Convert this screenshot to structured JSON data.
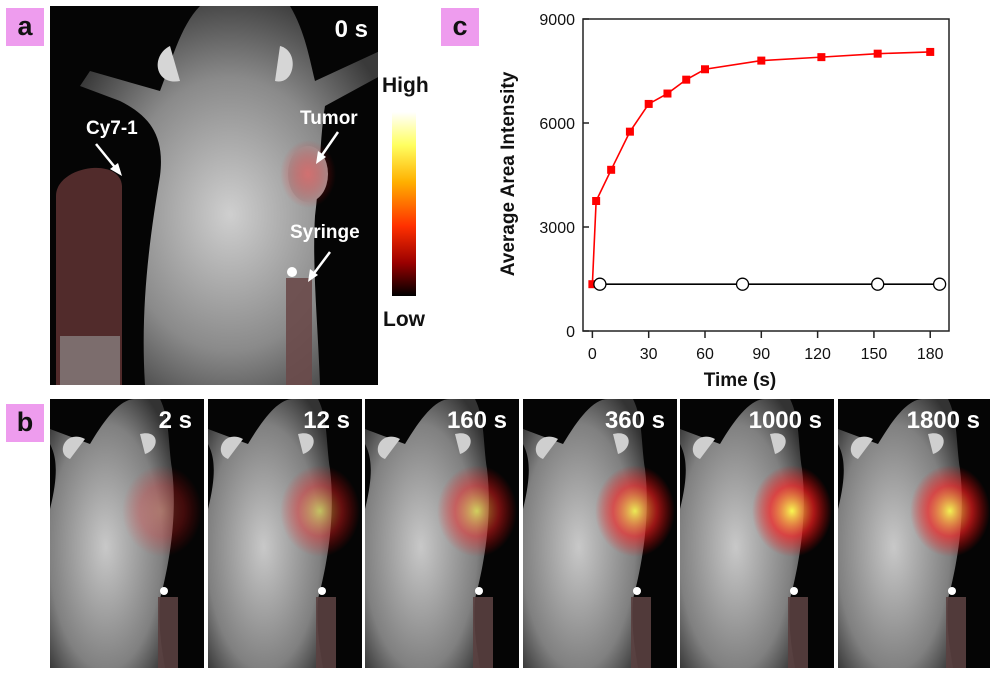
{
  "panel_a": {
    "tag": "a",
    "time_label": "0 s",
    "label_probe": "Cy7-1",
    "label_tumor": "Tumor",
    "label_syringe": "Syringe",
    "colorbar_high": "High",
    "colorbar_low": "Low"
  },
  "panel_b": {
    "tag": "b",
    "frames": [
      {
        "time": "2 s",
        "tumor_intensity": 0.35
      },
      {
        "time": "12 s",
        "tumor_intensity": 0.55
      },
      {
        "time": "160 s",
        "tumor_intensity": 0.65
      },
      {
        "time": "360 s",
        "tumor_intensity": 0.85
      },
      {
        "time": "1000 s",
        "tumor_intensity": 0.95
      },
      {
        "time": "1800 s",
        "tumor_intensity": 0.9
      }
    ]
  },
  "panel_c": {
    "tag": "c"
  },
  "chart_data": {
    "type": "line",
    "xlabel": "Time (s)",
    "ylabel": "Average Area Intensity",
    "xlim": [
      -5,
      190
    ],
    "ylim": [
      0,
      9000
    ],
    "xticks": [
      0,
      30,
      60,
      90,
      120,
      150,
      180
    ],
    "yticks": [
      0,
      3000,
      6000,
      9000
    ],
    "series": [
      {
        "color": "#ff0000",
        "marker": "filled-square",
        "x": [
          0,
          2,
          10,
          20,
          30,
          40,
          50,
          60,
          90,
          122,
          152,
          180
        ],
        "y": [
          1350,
          3750,
          4650,
          5750,
          6550,
          6850,
          7250,
          7550,
          7800,
          7900,
          8000,
          8050
        ]
      },
      {
        "color": "#000000",
        "marker": "open-circle",
        "x": [
          4,
          80,
          152,
          185
        ],
        "y": [
          1350,
          1350,
          1350,
          1350
        ]
      }
    ]
  }
}
